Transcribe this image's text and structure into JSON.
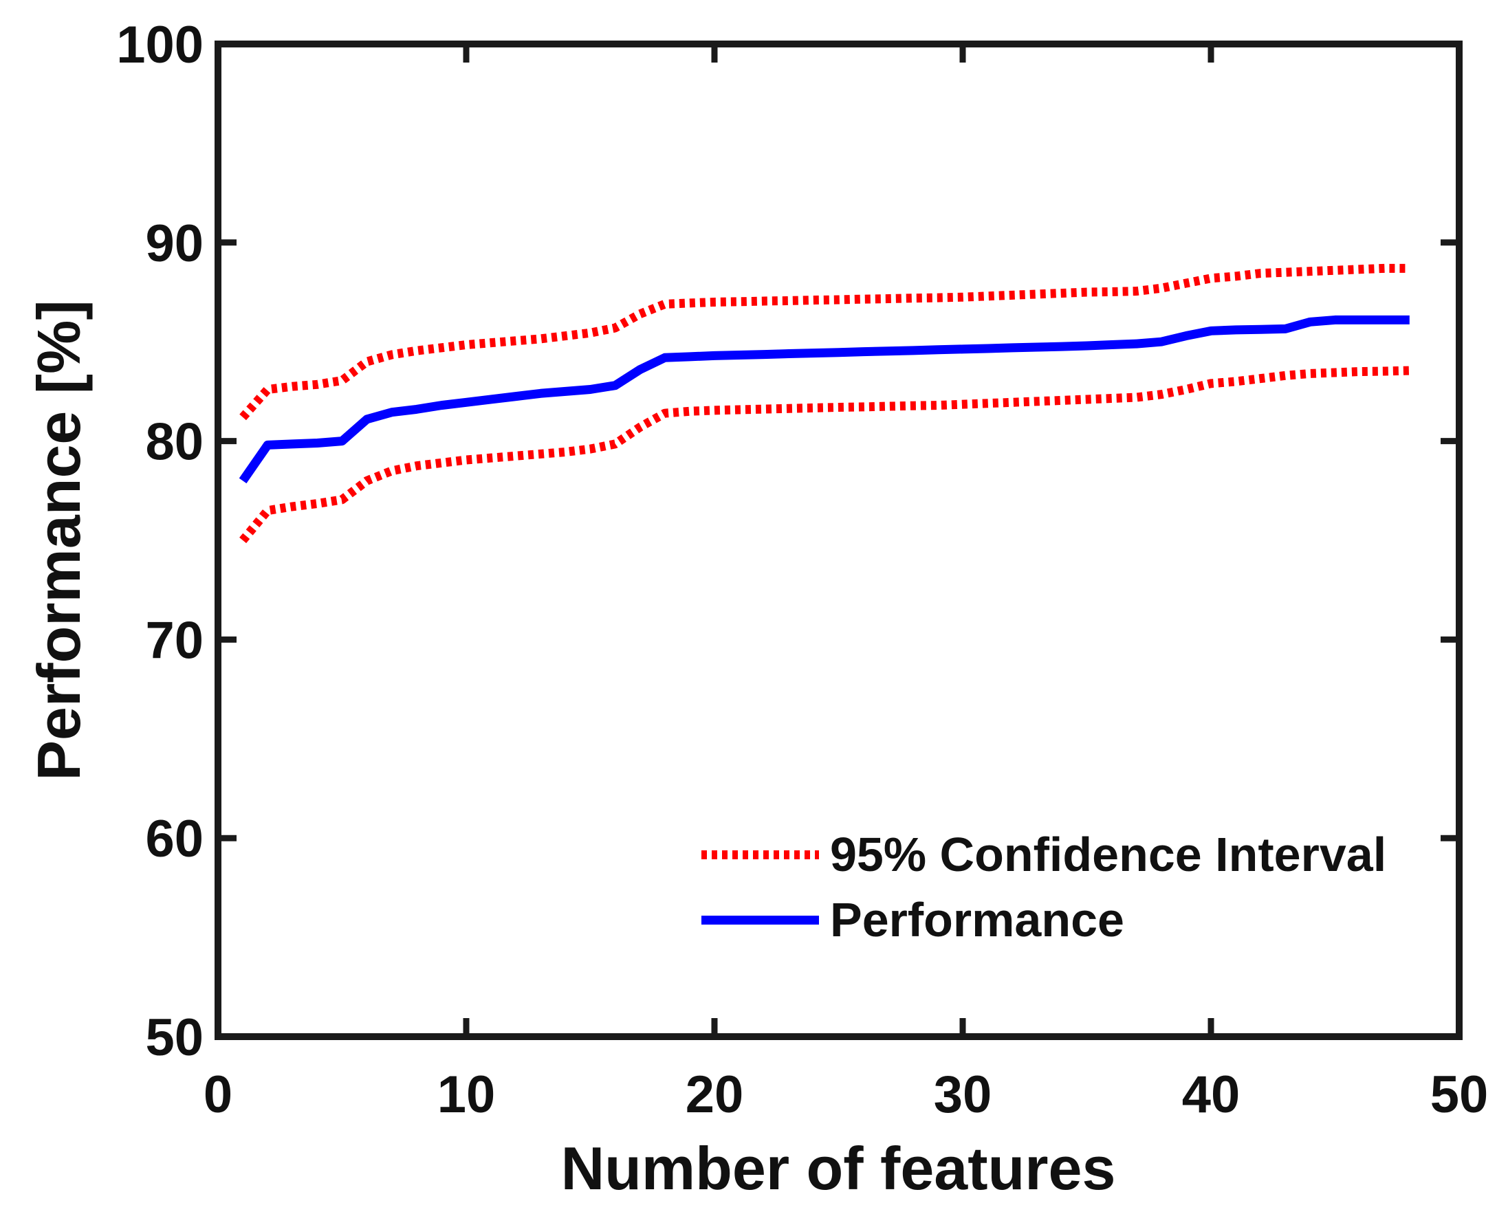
{
  "figure": {
    "background_color": "#ffffff",
    "axis_color": "#1a1a1a",
    "text_color": "#111111"
  },
  "chart_data": {
    "type": "line",
    "title": "",
    "xlabel": "Number of features",
    "ylabel": "Performance [%]",
    "xlim": [
      0,
      50
    ],
    "ylim": [
      50,
      100
    ],
    "xticks": [
      0,
      10,
      20,
      30,
      40,
      50
    ],
    "yticks": [
      50,
      60,
      70,
      80,
      90,
      100
    ],
    "grid": false,
    "box": true,
    "legend_position": "inside lower right",
    "x": [
      1,
      2,
      3,
      4,
      5,
      6,
      7,
      8,
      9,
      10,
      11,
      12,
      13,
      14,
      15,
      16,
      17,
      18,
      19,
      20,
      21,
      22,
      23,
      24,
      25,
      26,
      27,
      28,
      29,
      30,
      31,
      32,
      33,
      34,
      35,
      36,
      37,
      38,
      39,
      40,
      41,
      42,
      43,
      44,
      45,
      46,
      47,
      48
    ],
    "series": [
      {
        "name": "95% CI upper bound",
        "color": "#ff0000",
        "style": "dotted",
        "values": [
          81.2,
          82.6,
          82.75,
          82.85,
          83.05,
          84.0,
          84.35,
          84.55,
          84.7,
          84.85,
          84.95,
          85.05,
          85.15,
          85.3,
          85.45,
          85.7,
          86.4,
          86.9,
          86.95,
          87.0,
          87.02,
          87.05,
          87.07,
          87.1,
          87.12,
          87.15,
          87.17,
          87.2,
          87.22,
          87.25,
          87.3,
          87.35,
          87.4,
          87.45,
          87.5,
          87.52,
          87.55,
          87.7,
          87.95,
          88.2,
          88.3,
          88.45,
          88.5,
          88.55,
          88.6,
          88.65,
          88.7,
          88.7
        ]
      },
      {
        "name": "95% CI lower bound",
        "color": "#ff0000",
        "style": "dotted",
        "values": [
          75.0,
          76.5,
          76.7,
          76.85,
          77.05,
          78.0,
          78.5,
          78.75,
          78.9,
          79.05,
          79.15,
          79.25,
          79.35,
          79.45,
          79.6,
          79.85,
          80.7,
          81.4,
          81.5,
          81.55,
          81.58,
          81.61,
          81.64,
          81.67,
          81.7,
          81.72,
          81.75,
          81.78,
          81.8,
          81.85,
          81.9,
          81.95,
          82.0,
          82.05,
          82.1,
          82.15,
          82.2,
          82.35,
          82.6,
          82.9,
          83.0,
          83.15,
          83.3,
          83.4,
          83.45,
          83.5,
          83.52,
          83.55
        ]
      },
      {
        "name": "Performance",
        "color": "#0000ff",
        "style": "solid",
        "values": [
          78.0,
          79.8,
          79.85,
          79.9,
          80.0,
          81.1,
          81.45,
          81.6,
          81.8,
          81.95,
          82.1,
          82.25,
          82.4,
          82.5,
          82.6,
          82.8,
          83.6,
          84.2,
          84.25,
          84.3,
          84.33,
          84.36,
          84.4,
          84.43,
          84.46,
          84.5,
          84.53,
          84.56,
          84.6,
          84.63,
          84.66,
          84.7,
          84.73,
          84.76,
          84.8,
          84.85,
          84.9,
          85.0,
          85.3,
          85.55,
          85.6,
          85.62,
          85.65,
          86.0,
          86.1,
          86.1,
          86.1,
          86.1
        ]
      }
    ],
    "legend": [
      {
        "label": "95% Confidence Interval",
        "color": "#ff0000",
        "style": "dotted"
      },
      {
        "label": "Performance",
        "color": "#0000ff",
        "style": "solid"
      }
    ]
  }
}
